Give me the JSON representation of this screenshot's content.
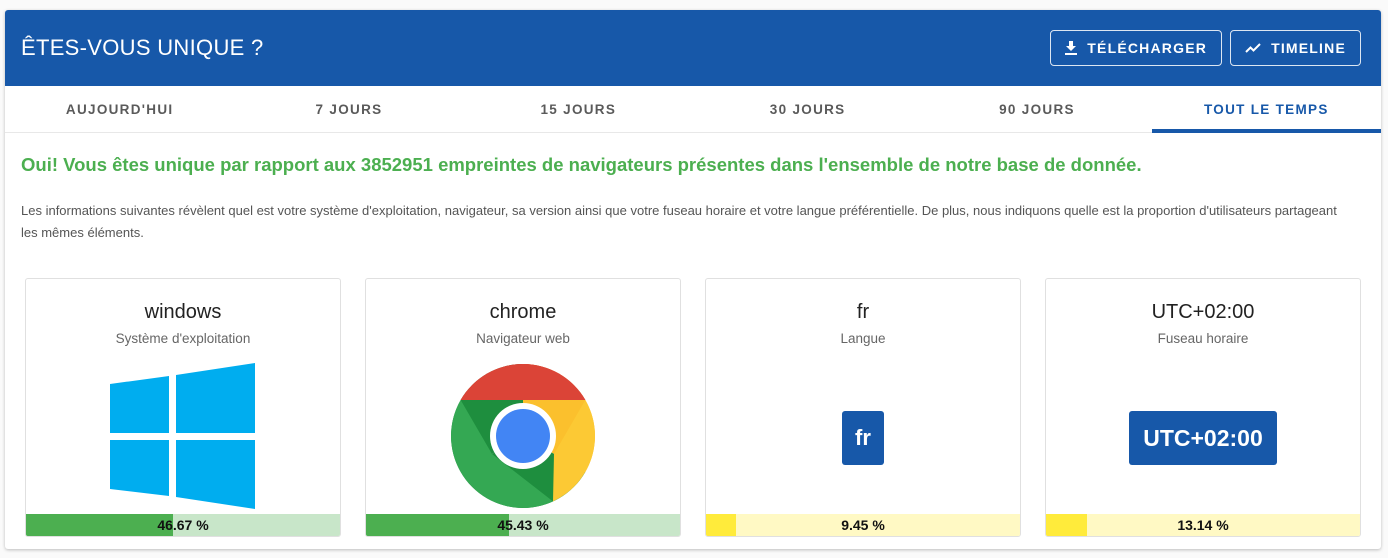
{
  "header": {
    "title": "ÊTES-VOUS UNIQUE ?",
    "download_label": "TÉLÉCHARGER",
    "timeline_label": "TIMELINE"
  },
  "tabs": [
    {
      "label": "AUJOURD'HUI",
      "active": false
    },
    {
      "label": "7 JOURS",
      "active": false
    },
    {
      "label": "15 JOURS",
      "active": false
    },
    {
      "label": "30 JOURS",
      "active": false
    },
    {
      "label": "90 JOURS",
      "active": false
    },
    {
      "label": "TOUT LE TEMPS",
      "active": true
    }
  ],
  "result": {
    "headline": "Oui! Vous êtes unique par rapport aux 3852951 empreintes de navigateurs présentes dans l'ensemble de notre base de donnée.",
    "description": "Les informations suivantes révèlent quel est votre système d'exploitation, navigateur, sa version ainsi que votre fuseau horaire et votre langue préférentielle. De plus, nous indiquons quelle est la proportion d'utilisateurs partageant les mêmes éléments."
  },
  "cards": [
    {
      "value": "windows",
      "caption": "Système d'exploitation",
      "icon": "windows-logo-icon",
      "percent_label": "46.67 %",
      "percent": 46.67,
      "bar_color": "#4caf50"
    },
    {
      "value": "chrome",
      "caption": "Navigateur web",
      "icon": "chrome-logo-icon",
      "percent_label": "45.43 %",
      "percent": 45.43,
      "bar_color": "#4caf50"
    },
    {
      "value": "fr",
      "caption": "Langue",
      "badge": "fr",
      "percent_label": "9.45 %",
      "percent": 9.45,
      "bar_color": "#ffeb3b"
    },
    {
      "value": "UTC+02:00",
      "caption": "Fuseau horaire",
      "badge": "UTC+02:00",
      "percent_label": "13.14 %",
      "percent": 13.14,
      "bar_color": "#ffeb3b"
    }
  ],
  "colors": {
    "primary": "#1758a9",
    "success_text": "#4caf50",
    "bar_green": "#4caf50",
    "bar_yellow": "#ffeb3b"
  }
}
